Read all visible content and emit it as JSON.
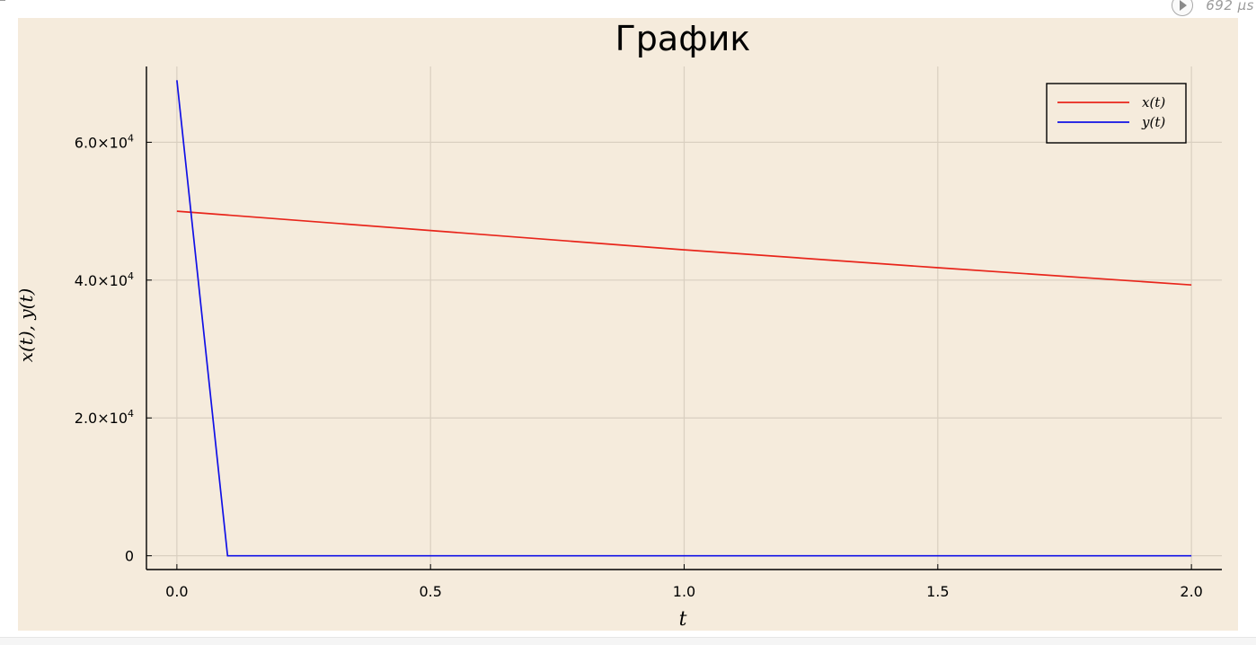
{
  "run": {
    "elapsed": "692 μs",
    "play_icon": "play-circle-icon"
  },
  "chart_data": {
    "type": "line",
    "title": "График",
    "xlabel": "t",
    "ylabel": "x(t), y(t)",
    "xlim": [
      -0.06,
      2.06
    ],
    "ylim": [
      -2000,
      71000
    ],
    "xticks": [
      {
        "value": 0.0,
        "label": "0.0"
      },
      {
        "value": 0.5,
        "label": "0.5"
      },
      {
        "value": 1.0,
        "label": "1.0"
      },
      {
        "value": 1.5,
        "label": "1.5"
      },
      {
        "value": 2.0,
        "label": "2.0"
      }
    ],
    "yticks": [
      {
        "value": 0,
        "mantissa": "0",
        "exp": ""
      },
      {
        "value": 20000,
        "mantissa": "2.0×10",
        "exp": "4"
      },
      {
        "value": 40000,
        "mantissa": "4.0×10",
        "exp": "4"
      },
      {
        "value": 60000,
        "mantissa": "6.0×10",
        "exp": "4"
      }
    ],
    "grid": true,
    "legend": "top-right",
    "background": "#f5ebdc",
    "series": [
      {
        "name": "x(t)",
        "color": "#e8251b",
        "x": [
          0.0,
          0.5,
          1.0,
          1.5,
          2.0
        ],
        "y": [
          50000,
          47200,
          44400,
          41800,
          39300
        ]
      },
      {
        "name": "y(t)",
        "color": "#1010e6",
        "x": [
          0.0,
          0.1,
          0.5,
          1.0,
          1.5,
          2.0
        ],
        "y": [
          69000,
          0,
          0,
          0,
          0,
          0
        ]
      }
    ]
  }
}
